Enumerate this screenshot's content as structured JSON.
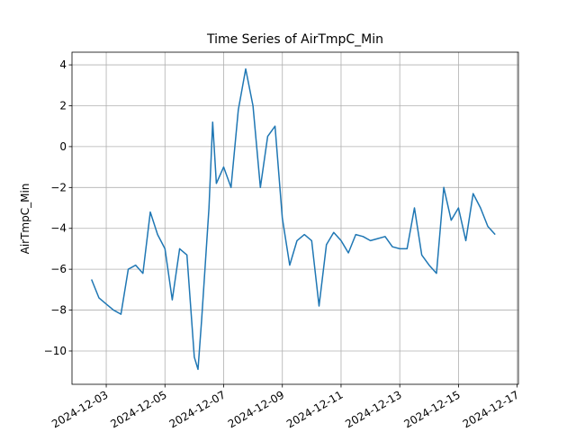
{
  "chart_data": {
    "type": "line",
    "title": "Time Series of AirTmpC_Min",
    "y_label": "AirTmpC_Min",
    "x": [
      "2024-12-02T12:00",
      "2024-12-02T18:00",
      "2024-12-03T00:00",
      "2024-12-03T06:00",
      "2024-12-03T12:00",
      "2024-12-03T18:00",
      "2024-12-04T00:00",
      "2024-12-04T06:00",
      "2024-12-04T12:00",
      "2024-12-04T18:00",
      "2024-12-05T00:00",
      "2024-12-05T06:00",
      "2024-12-05T12:00",
      "2024-12-05T18:00",
      "2024-12-06T00:00",
      "2024-12-06T03:00",
      "2024-12-06T06:00",
      "2024-12-06T12:00",
      "2024-12-06T15:00",
      "2024-12-06T18:00",
      "2024-12-07T00:00",
      "2024-12-07T06:00",
      "2024-12-07T12:00",
      "2024-12-07T18:00",
      "2024-12-08T00:00",
      "2024-12-08T06:00",
      "2024-12-08T12:00",
      "2024-12-08T18:00",
      "2024-12-09T00:00",
      "2024-12-09T06:00",
      "2024-12-09T12:00",
      "2024-12-09T18:00",
      "2024-12-10T00:00",
      "2024-12-10T06:00",
      "2024-12-10T12:00",
      "2024-12-10T18:00",
      "2024-12-11T00:00",
      "2024-12-11T06:00",
      "2024-12-11T12:00",
      "2024-12-11T18:00",
      "2024-12-12T00:00",
      "2024-12-12T06:00",
      "2024-12-12T12:00",
      "2024-12-12T18:00",
      "2024-12-13T00:00",
      "2024-12-13T06:00",
      "2024-12-13T12:00",
      "2024-12-13T18:00",
      "2024-12-14T00:00",
      "2024-12-14T06:00",
      "2024-12-14T12:00",
      "2024-12-14T18:00",
      "2024-12-15T00:00",
      "2024-12-15T06:00",
      "2024-12-15T12:00",
      "2024-12-15T18:00",
      "2024-12-16T00:00",
      "2024-12-16T06:00"
    ],
    "series": [
      {
        "name": "AirTmpC_Min",
        "color": "#1f77b4",
        "values": [
          -6.5,
          -7.4,
          -7.7,
          -8.0,
          -8.2,
          -6.0,
          -5.8,
          -6.2,
          -3.2,
          -4.3,
          -5.0,
          -7.5,
          -5.0,
          -5.3,
          -10.3,
          -10.9,
          -8.5,
          -3.0,
          1.2,
          -1.8,
          -1.0,
          -2.0,
          1.8,
          3.8,
          2.0,
          -2.0,
          0.5,
          1.0,
          -3.5,
          -5.8,
          -4.6,
          -4.3,
          -4.6,
          -7.8,
          -4.8,
          -4.2,
          -4.6,
          -5.2,
          -4.3,
          -4.4,
          -4.6,
          -4.5,
          -4.4,
          -4.9,
          -5.0,
          -5.0,
          -3.0,
          -5.3,
          -5.8,
          -6.2,
          -2.0,
          -3.6,
          -3.0,
          -4.6,
          -2.3,
          -3.0,
          -3.9,
          -4.3
        ]
      }
    ],
    "xlim": [
      "2024-12-01T20:00",
      "2024-12-17T01:00"
    ],
    "xticks": [
      "2024-12-03",
      "2024-12-05",
      "2024-12-07",
      "2024-12-09",
      "2024-12-11",
      "2024-12-13",
      "2024-12-15",
      "2024-12-17"
    ],
    "ylim": [
      -11.63,
      4.62
    ],
    "yticks": [
      {
        "value": -10,
        "label": "−10"
      },
      {
        "value": -8,
        "label": "−8"
      },
      {
        "value": -6,
        "label": "−6"
      },
      {
        "value": -4,
        "label": "−4"
      },
      {
        "value": -2,
        "label": "−2"
      },
      0,
      2,
      4
    ],
    "grid": true
  }
}
